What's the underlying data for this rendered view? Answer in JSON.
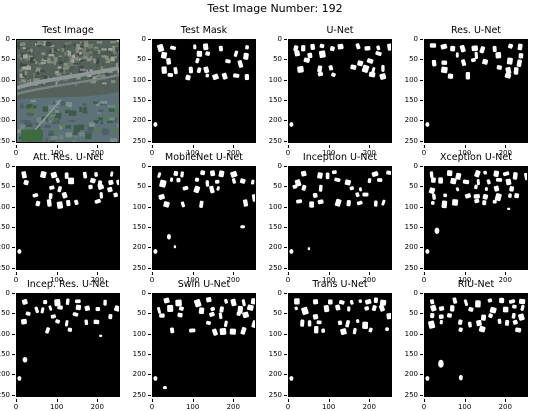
{
  "figure": {
    "suptitle": "Test Image Number: 192"
  },
  "axes": {
    "yticks": [
      "0",
      "50",
      "100",
      "150",
      "200",
      "250"
    ],
    "xticks": [
      "0",
      "100",
      "200"
    ]
  },
  "panels": [
    {
      "title": "Test Image",
      "kind": "photo"
    },
    {
      "title": "Test Mask",
      "kind": "mask"
    },
    {
      "title": "U-Net",
      "kind": "mask"
    },
    {
      "title": "Res. U-Net",
      "kind": "mask"
    },
    {
      "title": "Att. Res. U-Net",
      "kind": "mask"
    },
    {
      "title": "MobileNet U-Net",
      "kind": "mask"
    },
    {
      "title": "Inception U-Net",
      "kind": "mask"
    },
    {
      "title": "Xception U-Net",
      "kind": "mask"
    },
    {
      "title": "Incep. Res. U-Net",
      "kind": "mask"
    },
    {
      "title": "Swin U-Net",
      "kind": "mask"
    },
    {
      "title": "Trans U-Net",
      "kind": "mask"
    },
    {
      "title": "RIU-Net",
      "kind": "mask"
    }
  ],
  "colors": {
    "background": "#ffffff",
    "mask_bg": "#000000",
    "mask_fg": "#ffffff"
  }
}
